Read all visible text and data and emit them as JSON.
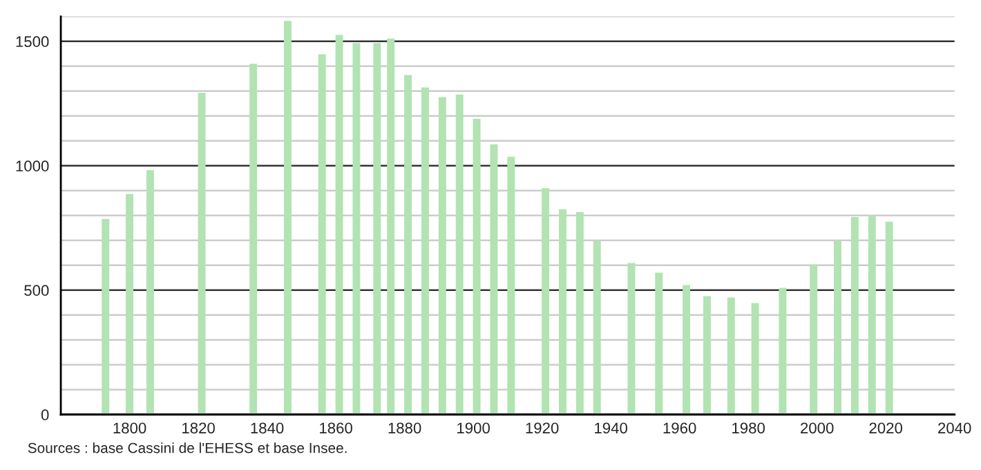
{
  "chart_data": {
    "type": "bar",
    "x": [
      1793,
      1800,
      1806,
      1821,
      1836,
      1846,
      1856,
      1861,
      1866,
      1872,
      1876,
      1881,
      1886,
      1891,
      1896,
      1901,
      1906,
      1911,
      1921,
      1926,
      1931,
      1936,
      1946,
      1954,
      1962,
      1968,
      1975,
      1982,
      1990,
      1999,
      2006,
      2011,
      2016,
      2021
    ],
    "values": [
      786,
      886,
      982,
      1293,
      1410,
      1582,
      1448,
      1526,
      1493,
      1493,
      1511,
      1365,
      1315,
      1276,
      1286,
      1188,
      1086,
      1036,
      910,
      825,
      814,
      697,
      609,
      570,
      520,
      476,
      470,
      448,
      509,
      603,
      697,
      794,
      801,
      775
    ],
    "color": "#b2e3b2",
    "xlim": [
      1780,
      2040
    ],
    "xticks": [
      1800,
      1820,
      1840,
      1860,
      1880,
      1900,
      1920,
      1940,
      1960,
      1980,
      2000,
      2020,
      2040
    ],
    "ylim": [
      0,
      1600
    ],
    "yticks": [
      0,
      {
        "value": 100,
        "label": null
      },
      {
        "value": 200,
        "label": null
      },
      {
        "value": 300,
        "label": null
      },
      {
        "value": 400,
        "label": null
      },
      500,
      {
        "value": 600,
        "label": null
      },
      {
        "value": 700,
        "label": null
      },
      {
        "value": 800,
        "label": null
      },
      {
        "value": 900,
        "label": null
      },
      1000,
      {
        "value": 1100,
        "label": null
      },
      {
        "value": 1200,
        "label": null
      },
      {
        "value": 1300,
        "label": null
      },
      {
        "value": 1400,
        "label": null
      },
      1500,
      {
        "value": 1600,
        "label": null
      }
    ],
    "grid": "y",
    "annotations": [
      "Sources : base Cassini de l'EHESS et base Insee."
    ]
  }
}
